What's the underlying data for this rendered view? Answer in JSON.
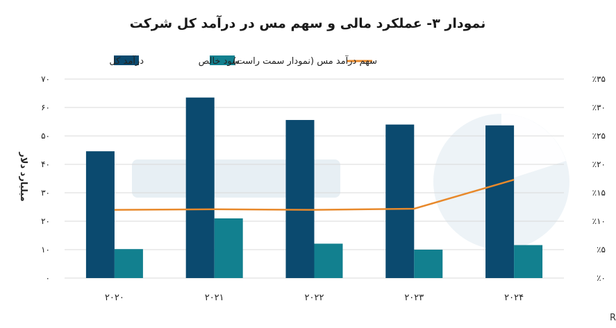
{
  "chart_data": {
    "type": "bar",
    "title": "نمودار ۳- عملکرد مالی و سهم مس در درآمد کل شرکت",
    "ylabel": "میلیارد دلار",
    "y2label": "",
    "categories": [
      "۲۰۲۰",
      "۲۰۲۱",
      "۲۰۲۲",
      "۲۰۲۳",
      "۲۰۲۴"
    ],
    "ylim": [
      0,
      70
    ],
    "y_ticks": [
      "۰",
      "۱۰",
      "۲۰",
      "۳۰",
      "۴۰",
      "۵۰",
      "۶۰",
      "۷۰"
    ],
    "y2lim": [
      0,
      35
    ],
    "y2_ticks": [
      "٪۰",
      "٪۵",
      "٪۱۰",
      "٪۱۵",
      "٪۲۰",
      "٪۲۵",
      "٪۳۰",
      "٪۳۵"
    ],
    "series": [
      {
        "name": "درآمد کل",
        "kind": "bar",
        "color": "#0b4a6f",
        "values": [
          44.6,
          63.5,
          55.6,
          54.0,
          53.7
        ]
      },
      {
        "name": "سود خالص",
        "kind": "bar",
        "color": "#12808f",
        "values": [
          10.2,
          21.0,
          12.1,
          10.0,
          11.6
        ]
      },
      {
        "name": "سهم درآمد مس (نمودار سمت راست)",
        "kind": "line",
        "axis": "right",
        "color": "#e8892b",
        "values": [
          12.0,
          12.1,
          12.0,
          12.2,
          17.3
        ]
      }
    ],
    "grid": true,
    "legend_position": "top"
  },
  "source": "منبع: گزارش‌های سالانه شرکت Rio Tinto"
}
